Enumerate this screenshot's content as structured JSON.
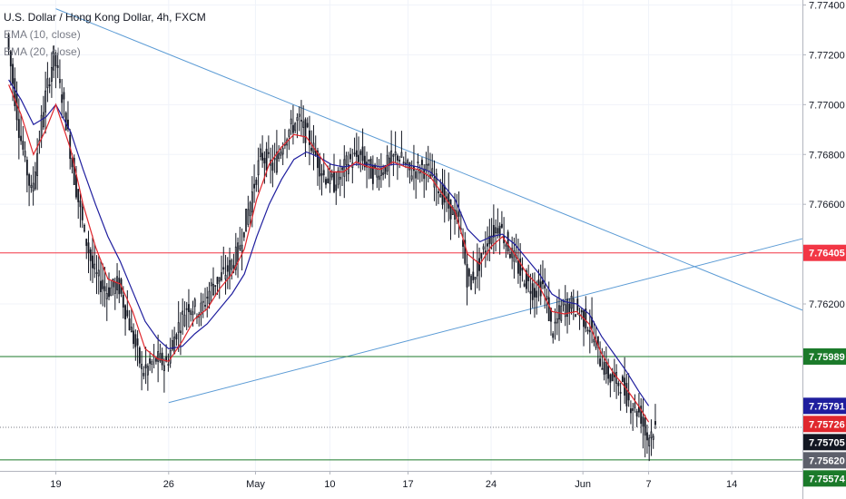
{
  "chart_data": {
    "type": "candlestick",
    "title": "U.S. Dollar / Hong Kong Dollar, 4h, FXCM",
    "indicators": [
      "EMA (10, close)",
      "EMA (20, close)"
    ],
    "ylim": [
      7.7553,
      7.7742
    ],
    "y_ticks": [
      "7.77400",
      "7.77200",
      "7.77000",
      "7.76800",
      "7.76600",
      "7.76200"
    ],
    "x_ticks": [
      {
        "label": "19",
        "t": 0.8
      },
      {
        "label": "26",
        "t": 9.9
      },
      {
        "label": "May",
        "t": 16.9
      },
      {
        "label": "10",
        "t": 22.9
      },
      {
        "label": "17",
        "t": 29.2
      },
      {
        "label": "24",
        "t": 35.9
      },
      {
        "label": "Jun",
        "t": 43.3
      },
      {
        "label": "7",
        "t": 48.6
      },
      {
        "label": "14",
        "t": 55.3
      }
    ],
    "t_range": [
      -3.7,
      61.0
    ],
    "price_points": [
      [
        -3.0,
        7.7728
      ],
      [
        -2.0,
        7.769
      ],
      [
        -1.0,
        7.7664
      ],
      [
        0.0,
        7.77
      ],
      [
        0.8,
        7.772
      ],
      [
        1.6,
        7.77
      ],
      [
        2.4,
        7.7672
      ],
      [
        3.2,
        7.765
      ],
      [
        4.0,
        7.7633
      ],
      [
        5.0,
        7.7625
      ],
      [
        6.0,
        7.7628
      ],
      [
        7.0,
        7.761
      ],
      [
        8.0,
        7.7592
      ],
      [
        9.0,
        7.7598
      ],
      [
        9.9,
        7.7596
      ],
      [
        10.6,
        7.7608
      ],
      [
        11.6,
        7.762
      ],
      [
        12.6,
        7.7617
      ],
      [
        13.6,
        7.7628
      ],
      [
        14.6,
        7.7632
      ],
      [
        15.6,
        7.764
      ],
      [
        16.6,
        7.766
      ],
      [
        17.5,
        7.768
      ],
      [
        18.5,
        7.7675
      ],
      [
        19.5,
        7.7688
      ],
      [
        20.5,
        7.7694
      ],
      [
        21.5,
        7.7685
      ],
      [
        22.5,
        7.7672
      ],
      [
        23.5,
        7.7668
      ],
      [
        24.5,
        7.7677
      ],
      [
        25.5,
        7.768
      ],
      [
        26.5,
        7.7672
      ],
      [
        27.5,
        7.7675
      ],
      [
        28.5,
        7.768
      ],
      [
        29.5,
        7.7673
      ],
      [
        30.5,
        7.7675
      ],
      [
        31.5,
        7.767
      ],
      [
        32.5,
        7.766
      ],
      [
        33.5,
        7.7653
      ],
      [
        34.2,
        7.7628
      ],
      [
        35.0,
        7.7635
      ],
      [
        35.9,
        7.7647
      ],
      [
        36.7,
        7.7652
      ],
      [
        37.5,
        7.7642
      ],
      [
        38.5,
        7.7632
      ],
      [
        39.5,
        7.7625
      ],
      [
        40.3,
        7.7628
      ],
      [
        41.0,
        7.7608
      ],
      [
        41.7,
        7.7618
      ],
      [
        42.5,
        7.762
      ],
      [
        43.3,
        7.7616
      ],
      [
        44.1,
        7.761
      ],
      [
        44.9,
        7.7597
      ],
      [
        45.7,
        7.759
      ],
      [
        46.5,
        7.7588
      ],
      [
        47.3,
        7.758
      ],
      [
        48.1,
        7.7576
      ],
      [
        48.6,
        7.7566
      ],
      [
        49.2,
        7.757
      ]
    ],
    "ema10": [
      [
        -3.0,
        7.7708
      ],
      [
        -2.0,
        7.7696
      ],
      [
        -1.0,
        7.768
      ],
      [
        0.0,
        7.769
      ],
      [
        0.8,
        7.77
      ],
      [
        2.0,
        7.7682
      ],
      [
        3.0,
        7.766
      ],
      [
        4.0,
        7.7643
      ],
      [
        5.0,
        7.763
      ],
      [
        6.0,
        7.7628
      ],
      [
        7.0,
        7.7617
      ],
      [
        8.0,
        7.7602
      ],
      [
        9.0,
        7.7598
      ],
      [
        9.9,
        7.7597
      ],
      [
        11.0,
        7.7605
      ],
      [
        12.0,
        7.7614
      ],
      [
        13.0,
        7.7618
      ],
      [
        14.0,
        7.7626
      ],
      [
        15.0,
        7.7632
      ],
      [
        16.0,
        7.7642
      ],
      [
        17.0,
        7.7662
      ],
      [
        18.0,
        7.7676
      ],
      [
        19.0,
        7.7683
      ],
      [
        20.0,
        7.7688
      ],
      [
        21.0,
        7.7687
      ],
      [
        22.0,
        7.768
      ],
      [
        23.0,
        7.7673
      ],
      [
        24.0,
        7.7673
      ],
      [
        25.0,
        7.7677
      ],
      [
        26.0,
        7.7675
      ],
      [
        27.0,
        7.7674
      ],
      [
        28.0,
        7.7677
      ],
      [
        29.0,
        7.7675
      ],
      [
        30.0,
        7.7674
      ],
      [
        31.0,
        7.7671
      ],
      [
        32.0,
        7.7664
      ],
      [
        33.0,
        7.7657
      ],
      [
        34.0,
        7.764
      ],
      [
        35.0,
        7.7636
      ],
      [
        35.9,
        7.7643
      ],
      [
        36.8,
        7.7647
      ],
      [
        37.8,
        7.764
      ],
      [
        38.8,
        7.7632
      ],
      [
        39.8,
        7.7627
      ],
      [
        40.8,
        7.7617
      ],
      [
        41.8,
        7.7616
      ],
      [
        42.8,
        7.7617
      ],
      [
        43.8,
        7.7612
      ],
      [
        44.8,
        7.76
      ],
      [
        45.8,
        7.7592
      ],
      [
        46.8,
        7.7586
      ],
      [
        47.8,
        7.7579
      ],
      [
        48.6,
        7.75726
      ]
    ],
    "ema20": [
      [
        -3.0,
        7.771
      ],
      [
        -2.0,
        7.7702
      ],
      [
        -1.0,
        7.7692
      ],
      [
        0.0,
        7.7695
      ],
      [
        0.8,
        7.77
      ],
      [
        2.0,
        7.7689
      ],
      [
        3.0,
        7.7674
      ],
      [
        4.0,
        7.766
      ],
      [
        5.0,
        7.7647
      ],
      [
        6.0,
        7.7637
      ],
      [
        7.0,
        7.7625
      ],
      [
        8.0,
        7.7613
      ],
      [
        9.0,
        7.7606
      ],
      [
        9.9,
        7.7602
      ],
      [
        11.0,
        7.7603
      ],
      [
        12.0,
        7.7608
      ],
      [
        13.0,
        7.7612
      ],
      [
        14.0,
        7.7618
      ],
      [
        15.0,
        7.7624
      ],
      [
        16.0,
        7.7632
      ],
      [
        17.0,
        7.7647
      ],
      [
        18.0,
        7.766
      ],
      [
        19.0,
        7.767
      ],
      [
        20.0,
        7.7678
      ],
      [
        21.0,
        7.7681
      ],
      [
        22.0,
        7.7679
      ],
      [
        23.0,
        7.7676
      ],
      [
        24.0,
        7.7675
      ],
      [
        25.0,
        7.7676
      ],
      [
        26.0,
        7.7676
      ],
      [
        27.0,
        7.7675
      ],
      [
        28.0,
        7.7676
      ],
      [
        29.0,
        7.7676
      ],
      [
        30.0,
        7.7675
      ],
      [
        31.0,
        7.7673
      ],
      [
        32.0,
        7.7668
      ],
      [
        33.0,
        7.7662
      ],
      [
        34.0,
        7.765
      ],
      [
        35.0,
        7.7645
      ],
      [
        35.9,
        7.7647
      ],
      [
        36.8,
        7.7648
      ],
      [
        37.8,
        7.7644
      ],
      [
        38.8,
        7.7638
      ],
      [
        39.8,
        7.7632
      ],
      [
        40.8,
        7.7624
      ],
      [
        41.8,
        7.7621
      ],
      [
        42.8,
        7.762
      ],
      [
        43.8,
        7.7616
      ],
      [
        44.8,
        7.7607
      ],
      [
        45.8,
        7.76
      ],
      [
        46.8,
        7.7593
      ],
      [
        47.8,
        7.7585
      ],
      [
        48.6,
        7.75791
      ]
    ],
    "trendlines": [
      {
        "name": "descending",
        "points": [
          [
            0.8,
            7.77385
          ],
          [
            61.0,
            7.76175
          ]
        ],
        "color": "#5b9bd5"
      },
      {
        "name": "ascending",
        "points": [
          [
            9.9,
            7.75804
          ],
          [
            61.0,
            7.76462
          ]
        ],
        "color": "#5b9bd5"
      }
    ],
    "horizontal_levels": [
      {
        "value": 7.76405,
        "label": "7.76405",
        "color": "#f23645"
      },
      {
        "value": 7.75989,
        "label": "7.75989",
        "color": "#1b7a2a"
      },
      {
        "value": 7.75574,
        "label": "7.75574",
        "color": "#1b7a2a"
      }
    ],
    "price_badges": [
      {
        "value": 7.75791,
        "label": "7.75791",
        "bg": "#1f1e9e",
        "fg": "#ffffff"
      },
      {
        "value": 7.75726,
        "label": "7.75726",
        "bg": "#e0272d",
        "fg": "#ffffff"
      },
      {
        "value": 7.75705,
        "label": "7.75705",
        "bg": "#131722",
        "fg": "#ffffff"
      },
      {
        "value": 7.7562,
        "label": "7.75620",
        "bg": "#5d606b",
        "fg": "#ffffff"
      }
    ],
    "current_price": 7.75705,
    "colors": {
      "candle": "#131722",
      "ema10": "#e0272d",
      "ema20": "#1f1e9e",
      "grid": "#f0f3fa",
      "axis_border": "#b2b5be"
    }
  }
}
